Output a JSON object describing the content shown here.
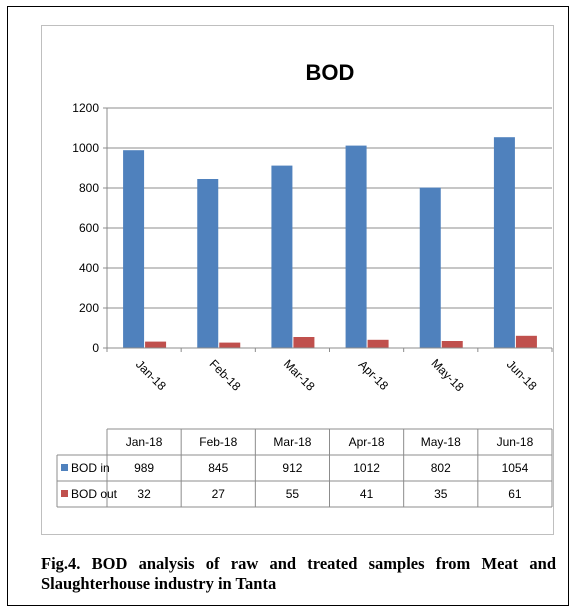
{
  "chart_data": {
    "type": "bar",
    "title": "BOD",
    "categories": [
      "Jan-18",
      "Feb-18",
      "Mar-18",
      "Apr-18",
      "May-18",
      "Jun-18"
    ],
    "series": [
      {
        "name": "BOD in",
        "color": "#4f81bd",
        "values": [
          989,
          845,
          912,
          1012,
          802,
          1054
        ]
      },
      {
        "name": "BOD out",
        "color": "#c0504d",
        "values": [
          32,
          27,
          55,
          41,
          35,
          61
        ]
      }
    ],
    "ylim": [
      0,
      1200
    ],
    "yticks": [
      0,
      200,
      400,
      600,
      800,
      1000,
      1200
    ],
    "grid": true,
    "legend": "data-table"
  },
  "caption": "Fig.4. BOD analysis of raw and treated samples from Meat and Slaughterhouse industry in Tanta"
}
